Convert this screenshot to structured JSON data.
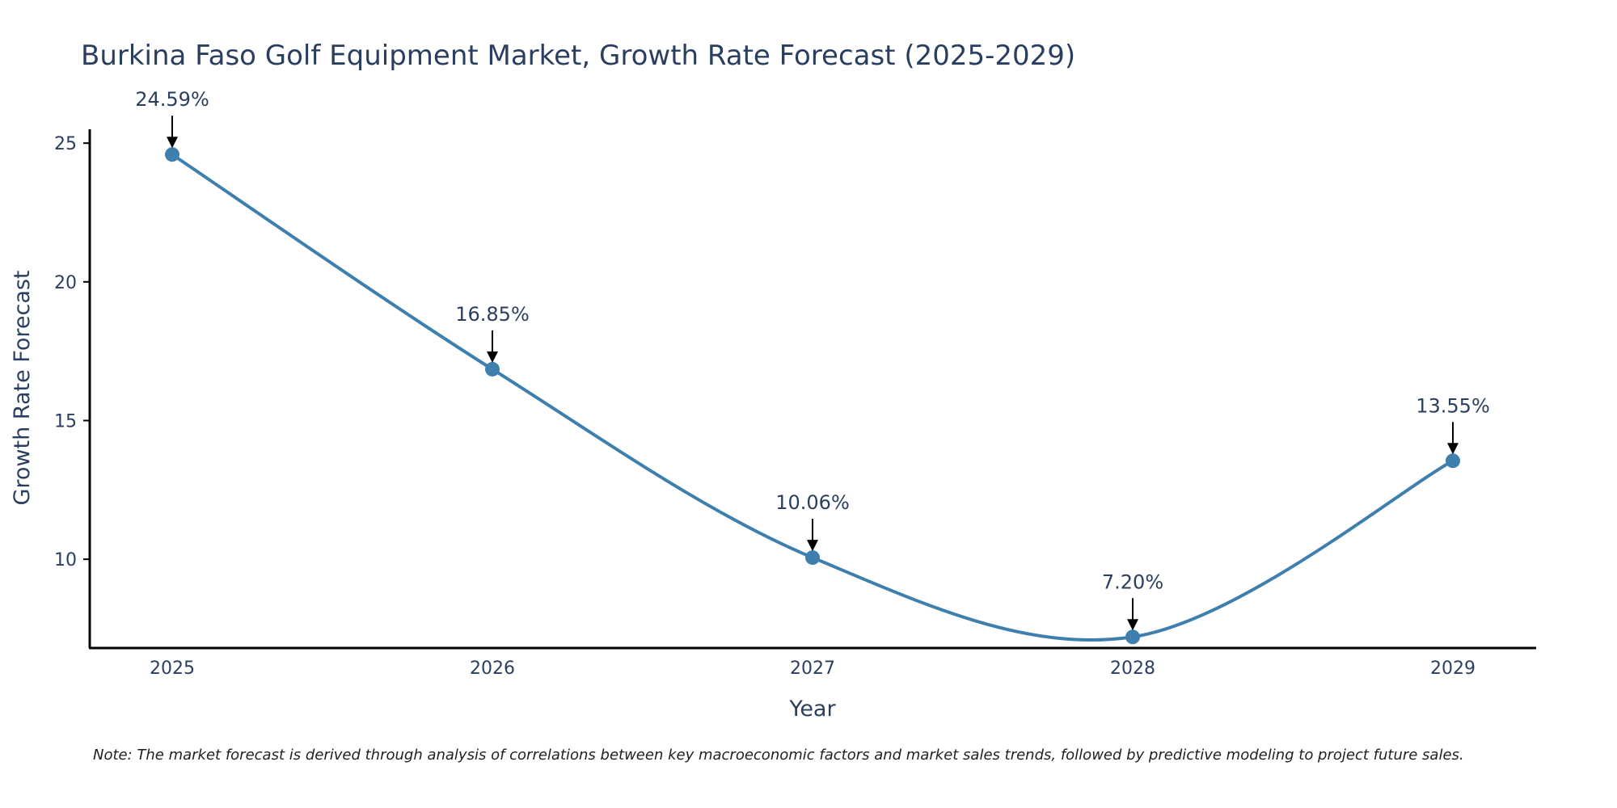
{
  "chart_data": {
    "type": "line",
    "title": "Burkina Faso Golf Equipment Market, Growth Rate Forecast (2025-2029)",
    "xlabel": "Year",
    "ylabel": "Growth Rate Forecast",
    "categories": [
      "2025",
      "2026",
      "2027",
      "2028",
      "2029"
    ],
    "series": [
      {
        "name": "Growth Rate Forecast",
        "values": [
          24.59,
          16.85,
          10.06,
          7.2,
          13.55
        ],
        "labels": [
          "24.59%",
          "16.85%",
          "10.06%",
          "7.20%",
          "13.55%"
        ]
      }
    ],
    "ylim": [
      6.8,
      25.5
    ],
    "yticks": [
      10,
      15,
      20,
      25
    ],
    "ytick_labels": [
      "10",
      "15",
      "20",
      "25"
    ],
    "grid": false,
    "line_color": "#3f7fae",
    "marker_color": "#3f7fae",
    "axis_color": "#000000",
    "note": "Note: The market forecast is derived through analysis of correlations between key macroeconomic factors and market sales trends, followed by predictive modeling to project future sales."
  }
}
